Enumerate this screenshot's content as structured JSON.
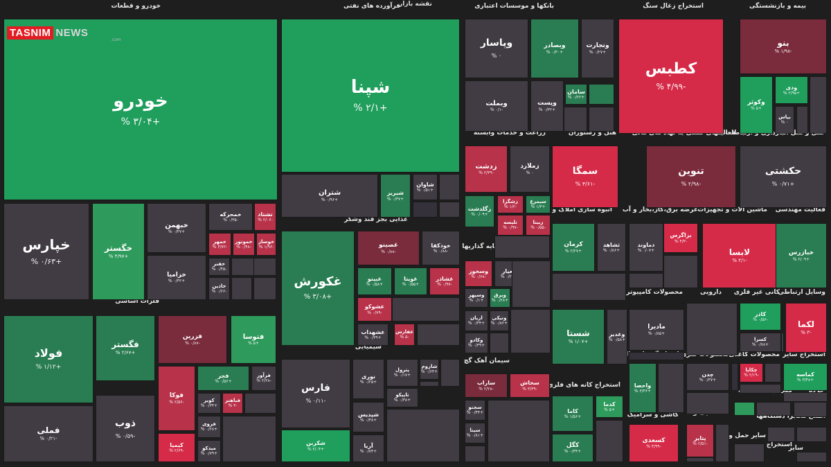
{
  "title": "نقشه بازار",
  "logo": {
    "brand_red": "TASNIM",
    "brand_grey": "NEWS",
    "sub": ".com"
  },
  "colors": {
    "strong_green": "#2e9a5b",
    "green": "#2a7d52",
    "light_green": "#1f9e5c",
    "neutral": "#413b43",
    "neutral_dark": "#35313a",
    "red": "#b8324a",
    "strong_red": "#d62b48",
    "dark_red": "#7a2b3c"
  },
  "sections": [
    "خودرو و قطعات",
    "فرآورده های نفتی",
    "بانکها و موسسات اعتباری",
    "استخراج زغال سنگ",
    "بیمه و بازنشستگی",
    "زراعت و خدمات وابسته",
    "هتل و رستوران",
    "فعالیتهای کمکی به نهاد های مالی",
    "حمل و نقل انبارداری و ارتباطات",
    "غذایی بجز قند وشکر",
    "انبوه سازی املاک و",
    "عرضه برق،گاز،بخار و آب",
    "ماشین آلات و تجهیزات",
    "فعالیت مهندسی",
    "سرمایه گذاریها",
    "فلزات اساسی",
    "چندرشته ای صنعتی",
    "محصولات کامپیوتری",
    "دارویی",
    "کانی غیر فلزی",
    "وسایل ارتباطی",
    "شیمیایی",
    "سیمان آهک گچ",
    "استخراج کانه های فلزی",
    "واسطه گریهای مالی و",
    "محصولات فلزی",
    "محصولات کاغذی",
    "استخراج سایر",
    "کاشی و سرامیک",
    "لاستیک و",
    "رایانه",
    "فنی و",
    "خرده",
    "اطلاع مخابرا دستگاهها",
    "سایر حمل و",
    "استخراج",
    "سایر"
  ],
  "tiles": [
    {
      "name": "خودرو",
      "change": "+۳/۰۴ %"
    },
    {
      "name": "خپارس",
      "change": "+۰/۶۳ %"
    },
    {
      "name": "خگستر",
      "change": "+۴/۹۷ %"
    },
    {
      "name": "خبهمن",
      "change": "+۰/۴۷ %"
    },
    {
      "name": "خزامیا",
      "change": "+۰/۳۲ %"
    },
    {
      "name": "خمحرکه",
      "change": "-۰/۳۵ %"
    },
    {
      "name": "تشتاد",
      "change": "-۲/۰۶ %"
    },
    {
      "name": "خمهر",
      "change": "-۳/۷۲ %"
    },
    {
      "name": "خموتور",
      "change": "-۰/۴۸ %"
    },
    {
      "name": "خوساز",
      "change": "-۱/۹۶ %"
    },
    {
      "name": "خفنر",
      "change": "-۰/۴۵ %"
    },
    {
      "name": "خاذین",
      "change": "-۰/۶۶ %"
    },
    {
      "name": "شپنا",
      "change": "+۲/۱ %"
    },
    {
      "name": "شتران",
      "change": "+۰/۹۶ %"
    },
    {
      "name": "شبریز",
      "change": "+۰/۳۷ %"
    },
    {
      "name": "شاوان",
      "change": "+۰/۵۱ %"
    },
    {
      "name": "وپاسار",
      "change": "۰ %"
    },
    {
      "name": "وبصادر",
      "change": "+۰/۳۰ %"
    },
    {
      "name": "وتجارت",
      "change": "+۰/۲۷ %"
    },
    {
      "name": "وبملت",
      "change": "-۰/۱ %"
    },
    {
      "name": "وپست",
      "change": "+۰/۳۲ %"
    },
    {
      "name": "سامان",
      "change": "+۰/۲۲ %"
    },
    {
      "name": "کطبس",
      "change": "-۴/۹۹ %"
    },
    {
      "name": "بنو",
      "change": "-۱/۹۸ %"
    },
    {
      "name": "وکوثر",
      "change": "+۵ %"
    },
    {
      "name": "ودی",
      "change": "+۲/۹۵ %"
    },
    {
      "name": "بپاس",
      "change": "۰ %"
    },
    {
      "name": "زدشت",
      "change": "-۲/۳۹ %"
    },
    {
      "name": "زملارد",
      "change": "۰ %"
    },
    {
      "name": "سمگا",
      "change": "-۴/۶۱ %"
    },
    {
      "name": "تنوین",
      "change": "-۲/۹۸ %"
    },
    {
      "name": "حکشتی",
      "change": "+۰/۷۱ %"
    },
    {
      "name": "زگلدشت",
      "change": "+۰/۰۹ %"
    },
    {
      "name": "زشگزا",
      "change": "-۱/۲ %"
    },
    {
      "name": "سیمرغ",
      "change": "+۱/۳ %"
    },
    {
      "name": "تلیسه",
      "change": "-۰/۹۷ %"
    },
    {
      "name": "زبینا",
      "change": "-۰/۵۵ %"
    },
    {
      "name": "غکورش",
      "change": "+۳/۰۸ %"
    },
    {
      "name": "غصینو",
      "change": "-۰/۸۸ %"
    },
    {
      "name": "خودکفا",
      "change": "-۰/۸۸ %"
    },
    {
      "name": "غبینو",
      "change": "+۰/۵۸ %"
    },
    {
      "name": "غویتا",
      "change": "+۰/۵۵ %"
    },
    {
      "name": "غشاذر",
      "change": "-۰/۹۷ %"
    },
    {
      "name": "غشوکو",
      "change": "-۰/۷۹ %"
    },
    {
      "name": "غشهداب",
      "change": "+۰/۳۹ %"
    },
    {
      "name": "غفارس",
      "change": "-۵ %"
    },
    {
      "name": "کرمان",
      "change": "+۲/۲۷ %"
    },
    {
      "name": "ثشاهد",
      "change": "+۰/۸۶ %"
    },
    {
      "name": "دماوند",
      "change": "+۰/۰۷ %"
    },
    {
      "name": "بزاگرس",
      "change": "-۴/۳ %"
    },
    {
      "name": "لابسا",
      "change": "-۴/۱ %"
    },
    {
      "name": "خبازرس",
      "change": "+۲/۰۹ %"
    },
    {
      "name": "وسخوز",
      "change": "-۰/۶۸ %"
    },
    {
      "name": "معیار",
      "change": "+۰/۲۶ %"
    },
    {
      "name": "وبرق",
      "change": "+۰/۲۸ %"
    },
    {
      "name": "وسپهر",
      "change": "+۰/۱ %"
    },
    {
      "name": "اریان",
      "change": "+۰/۳۴ %"
    },
    {
      "name": "ونیکی",
      "change": "+۰/۸۲ %"
    },
    {
      "name": "وکادو",
      "change": "+۰/۳۹ %"
    },
    {
      "name": "شستا",
      "change": "+۱/۰۷ %"
    },
    {
      "name": "وغدیر",
      "change": "+۰/۵۸ %"
    },
    {
      "name": "مادیرا",
      "change": "+۰/۸۵ %"
    },
    {
      "name": "کاذر",
      "change": "-۰/۵۶ %"
    },
    {
      "name": "کسرا",
      "change": "+۰/۷۸ %"
    },
    {
      "name": "لکما",
      "change": "-۳ %"
    },
    {
      "name": "فولاد",
      "change": "+۱/۱۲ %"
    },
    {
      "name": "فگستر",
      "change": "+۲/۶۷ %"
    },
    {
      "name": "فزرین",
      "change": "-۰/۸۷ %"
    },
    {
      "name": "فتوسا",
      "change": "+۵ %"
    },
    {
      "name": "فملی",
      "change": "-۰/۲۱ %"
    },
    {
      "name": "ذوب",
      "change": "-۰/۵۹ %"
    },
    {
      "name": "فوکا",
      "change": "-۲/۵۶ %"
    },
    {
      "name": "فجر",
      "change": "+۰/۵۶ %"
    },
    {
      "name": "فرآور",
      "change": "-۲/۲۸ %"
    },
    {
      "name": "کویر",
      "change": "+۰/۳۴ %"
    },
    {
      "name": "فباهنر",
      "change": "-۳ %"
    },
    {
      "name": "فروی",
      "change": "+۰/۲۸ %"
    },
    {
      "name": "کیمیا",
      "change": "-۲/۶۹ %"
    },
    {
      "name": "میدکو",
      "change": "+۰/۷۹ %"
    },
    {
      "name": "فارس",
      "change": "-۰/۱۱ %"
    },
    {
      "name": "نوری",
      "change": "+۰/۲۵ %"
    },
    {
      "name": "پترول",
      "change": "+۰/۱۷ %"
    },
    {
      "name": "شاروم",
      "change": "+۰/۶۴ %"
    },
    {
      "name": "تاپیکو",
      "change": "+۰/۳۸ %"
    },
    {
      "name": "شپدیس",
      "change": "+۰/۳۸ %"
    },
    {
      "name": "آریا",
      "change": "+۰/۷۴ %"
    },
    {
      "name": "شکربن",
      "change": "+۲/۰۴ %"
    },
    {
      "name": "ساراب",
      "change": "-۲/۲۸ %"
    },
    {
      "name": "سخاش",
      "change": "-۳/۳۹ %"
    },
    {
      "name": "سجنو",
      "change": "+۰/۴۴ %"
    },
    {
      "name": "سینا",
      "change": "+۰/۸۱ %"
    },
    {
      "name": "کاما",
      "change": "+۱/۵۶ %"
    },
    {
      "name": "کدما",
      "change": "+۵ %"
    },
    {
      "name": "کگل",
      "change": "+۰/۳۴ %"
    },
    {
      "name": "واحصا",
      "change": "+۳/۳۶ %"
    },
    {
      "name": "چدن",
      "change": "+۰/۳۷ %"
    },
    {
      "name": "چکاپا",
      "change": "-۲/۱۹ %"
    },
    {
      "name": "کماسه",
      "change": "+۳/۴۸ %"
    },
    {
      "name": "کسعدی",
      "change": "-۴/۹۹ %"
    },
    {
      "name": "پتایر",
      "change": "-۲/۵۱ %"
    }
  ]
}
